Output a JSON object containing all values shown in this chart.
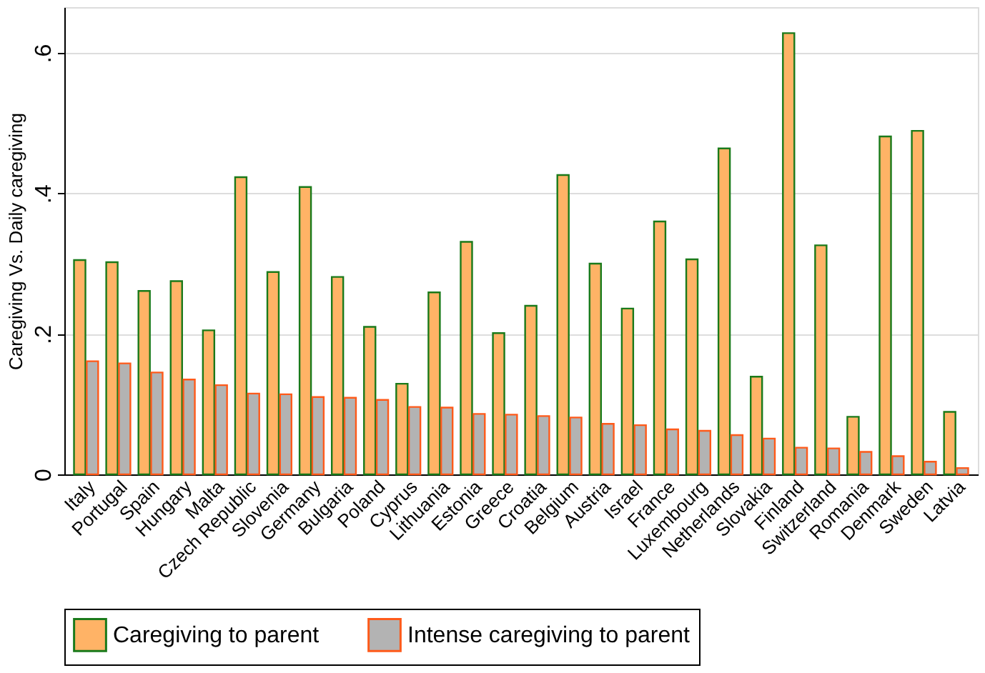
{
  "chart_data": {
    "type": "bar",
    "ylabel": "Caregiving Vs. Daily caregiving",
    "categories": [
      "Italy",
      "Portugal",
      "Spain",
      "Hungary",
      "Malta",
      "Czech Republic",
      "Slovenia",
      "Germany",
      "Bulgaria",
      "Poland",
      "Cyprus",
      "Lithuania",
      "Estonia",
      "Greece",
      "Croatia",
      "Belgium",
      "Austria",
      "Israel",
      "France",
      "Luxembourg",
      "Netherlands",
      "Slovakia",
      "Finland",
      "Switzerland",
      "Romania",
      "Denmark",
      "Sweden",
      "Latvia"
    ],
    "series": [
      {
        "name": "Caregiving to parent",
        "color": "#ffb366",
        "values": [
          0.305,
          0.302,
          0.261,
          0.275,
          0.205,
          0.423,
          0.288,
          0.409,
          0.281,
          0.21,
          0.129,
          0.259,
          0.331,
          0.201,
          0.24,
          0.426,
          0.3,
          0.236,
          0.36,
          0.306,
          0.464,
          0.139,
          0.628,
          0.326,
          0.082,
          0.481,
          0.489,
          0.089
        ]
      },
      {
        "name": "Intense caregiving to parent",
        "color": "#b3b3b3",
        "values": [
          0.161,
          0.158,
          0.145,
          0.135,
          0.127,
          0.115,
          0.114,
          0.11,
          0.109,
          0.106,
          0.096,
          0.095,
          0.086,
          0.085,
          0.083,
          0.081,
          0.072,
          0.07,
          0.064,
          0.062,
          0.056,
          0.051,
          0.038,
          0.037,
          0.032,
          0.026,
          0.018,
          0.009
        ]
      }
    ],
    "ylim": [
      0,
      0.665
    ],
    "yticks": [
      {
        "value": 0,
        "label": "0"
      },
      {
        "value": 0.2,
        "label": ".2"
      },
      {
        "value": 0.4,
        "label": ".4"
      },
      {
        "value": 0.6,
        "label": ".6"
      }
    ],
    "grid": "y",
    "legend": "bottom"
  }
}
